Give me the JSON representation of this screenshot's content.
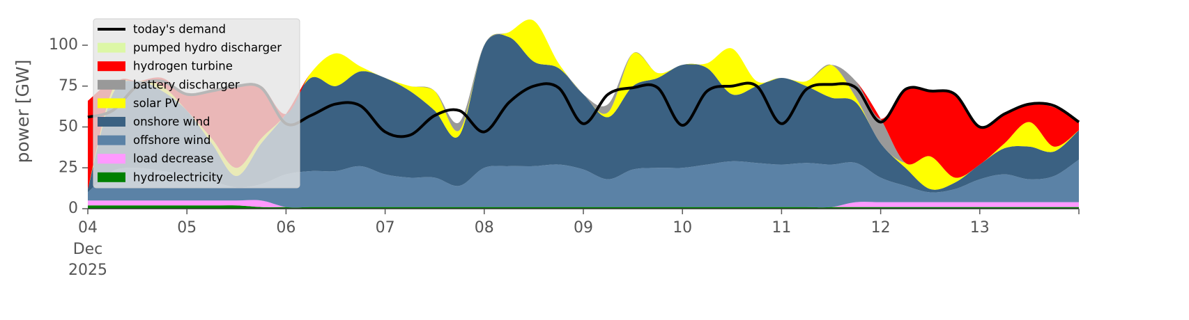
{
  "chart_data": {
    "type": "stacked_area",
    "ylabel": "power [GW]",
    "x": [
      4,
      4.25,
      4.5,
      4.75,
      5,
      5.25,
      5.5,
      5.75,
      6,
      6.25,
      6.5,
      6.75,
      7,
      7.25,
      7.5,
      7.75,
      8,
      8.25,
      8.5,
      8.75,
      9,
      9.25,
      9.5,
      9.75,
      10,
      10.25,
      10.5,
      10.75,
      11,
      11.25,
      11.5,
      11.75,
      12,
      12.25,
      12.5,
      12.75,
      13,
      13.25,
      13.5,
      13.75,
      14
    ],
    "xlim": [
      4,
      14
    ],
    "xticks": [
      {
        "value": 4,
        "label": "04"
      },
      {
        "value": 5,
        "label": "05"
      },
      {
        "value": 6,
        "label": "06"
      },
      {
        "value": 7,
        "label": "07"
      },
      {
        "value": 8,
        "label": "08"
      },
      {
        "value": 9,
        "label": "09"
      },
      {
        "value": 10,
        "label": "10"
      },
      {
        "value": 11,
        "label": "11"
      },
      {
        "value": 12,
        "label": "12"
      },
      {
        "value": 13,
        "label": "13"
      }
    ],
    "date_label": [
      "Dec",
      "2025"
    ],
    "ylim": [
      0,
      120
    ],
    "yticks": [
      0,
      25,
      50,
      75,
      100
    ],
    "demand": {
      "name": "today's demand",
      "color": "#000000",
      "values": [
        56,
        60,
        75,
        78,
        70,
        72,
        75,
        74,
        52,
        57,
        64,
        63,
        47,
        45,
        57,
        60,
        47,
        65,
        75,
        74,
        52,
        70,
        74,
        74,
        51,
        72,
        75,
        75,
        52,
        73,
        76,
        74,
        53,
        73,
        72,
        70,
        50,
        58,
        64,
        63,
        53
      ]
    },
    "series": [
      {
        "name": "hydroelectricity",
        "color": "#008000",
        "values": [
          2,
          2,
          2,
          2,
          2,
          2,
          2,
          1,
          1,
          1,
          1,
          1,
          1,
          1,
          1,
          1,
          1,
          1,
          1,
          1,
          1,
          1,
          1,
          1,
          1,
          1,
          1,
          1,
          1,
          1,
          1,
          1,
          1,
          1,
          1,
          1,
          1,
          1,
          1,
          1,
          1
        ]
      },
      {
        "name": "load decrease",
        "color": "#ff99ff",
        "values": [
          3,
          3,
          3,
          3,
          3,
          3,
          3,
          4,
          0,
          0,
          0,
          0,
          0,
          0,
          0,
          0,
          0,
          0,
          0,
          0,
          0,
          0,
          0,
          0,
          0,
          0,
          0,
          0,
          0,
          0,
          0,
          3,
          3,
          3,
          3,
          3,
          3,
          3,
          3,
          3,
          3
        ]
      },
      {
        "name": "offshore wind",
        "color": "#5b82a6",
        "values": [
          5,
          18,
          20,
          18,
          16,
          12,
          8,
          10,
          20,
          22,
          22,
          25,
          20,
          18,
          18,
          13,
          24,
          25,
          25,
          26,
          23,
          17,
          23,
          24,
          24,
          26,
          28,
          27,
          26,
          27,
          26,
          24,
          15,
          10,
          6,
          8,
          14,
          17,
          14,
          16,
          26
        ]
      },
      {
        "name": "onshore wind",
        "color": "#3b6182",
        "values": [
          2,
          47,
          53,
          49,
          39,
          23,
          7,
          25,
          37,
          57,
          52,
          58,
          59,
          53,
          41,
          31,
          75,
          79,
          64,
          59,
          46,
          38,
          51,
          55,
          63,
          59,
          41,
          47,
          53,
          47,
          41,
          37,
          21,
          11,
          2,
          4,
          9,
          16,
          20,
          15,
          18
        ]
      },
      {
        "name": "solar PV",
        "color": "#ffff00",
        "values": [
          0,
          3,
          0,
          3,
          0,
          3,
          5,
          3,
          0,
          3,
          20,
          3,
          0,
          3,
          12,
          3,
          0,
          3,
          25,
          3,
          0,
          3,
          20,
          3,
          0,
          3,
          28,
          3,
          0,
          3,
          20,
          3,
          0,
          3,
          20,
          3,
          0,
          3,
          15,
          3,
          0
        ]
      },
      {
        "name": "battery discharger",
        "color": "#999999",
        "values": [
          0,
          0,
          0,
          0,
          0,
          0,
          0,
          0,
          0,
          0,
          0,
          0,
          0,
          0,
          0,
          5,
          0,
          0,
          0,
          0,
          0,
          5,
          0,
          0,
          0,
          0,
          0,
          0,
          0,
          0,
          0,
          10,
          15,
          0,
          0,
          0,
          0,
          0,
          0,
          0,
          0
        ]
      },
      {
        "name": "hydrogen turbine",
        "color": "#ff0000",
        "values": [
          54,
          5,
          0,
          5,
          10,
          30,
          50,
          32,
          0,
          0,
          0,
          0,
          0,
          0,
          0,
          0,
          0,
          0,
          0,
          0,
          0,
          0,
          0,
          0,
          0,
          0,
          0,
          0,
          0,
          0,
          0,
          0,
          0,
          45,
          40,
          51,
          23,
          18,
          11,
          24,
          5
        ]
      },
      {
        "name": "pumped hydro discharger",
        "color": "#dcf7a6",
        "values": [
          0,
          0,
          0,
          0,
          0,
          0,
          0,
          0,
          0,
          0,
          0,
          0,
          0,
          0,
          0,
          0,
          0,
          0,
          0,
          0,
          0,
          0,
          0,
          0,
          0,
          0,
          0,
          0,
          0,
          0,
          0,
          0,
          0,
          0,
          0,
          0,
          0,
          0,
          0,
          0,
          0
        ]
      }
    ]
  }
}
